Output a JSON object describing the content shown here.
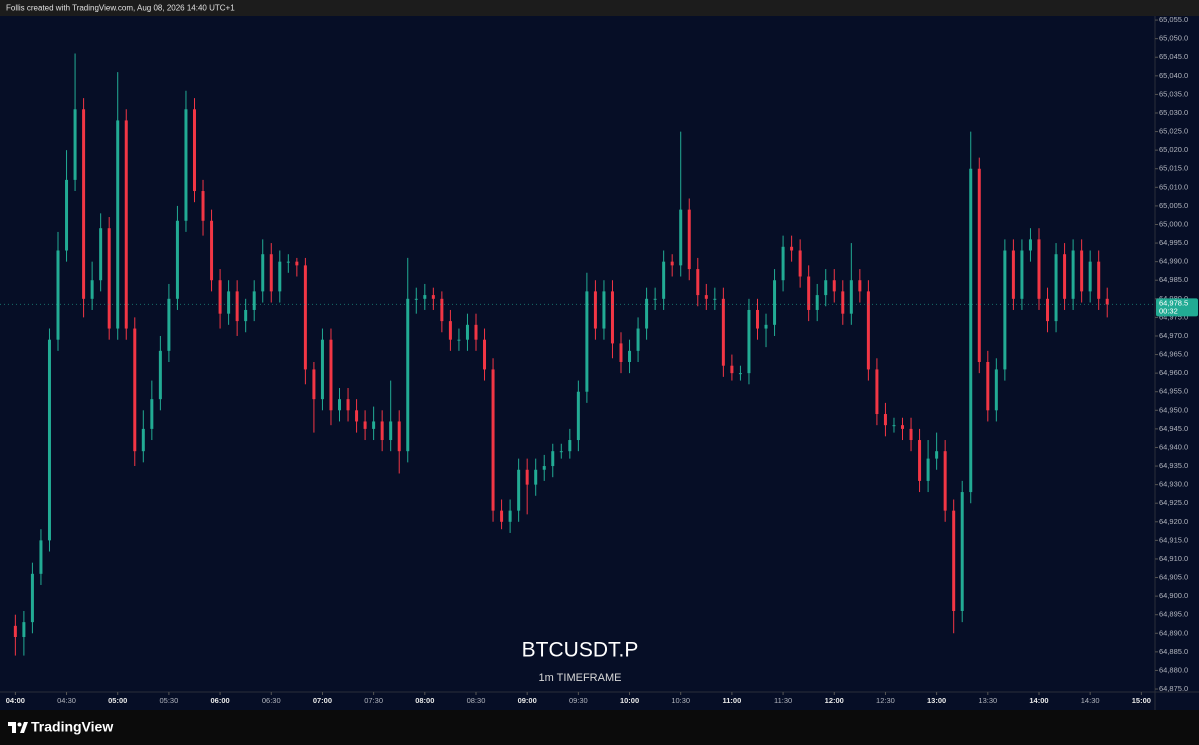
{
  "header": "Follis created with TradingView.com, Aug 08, 2026 14:40 UTC+1",
  "brand": "TradingView",
  "chart_data": {
    "type": "candlestick",
    "symbol": "BTCUSDT.P",
    "timeframe": "1m TIMEFRAME",
    "up_color": "#22ab94",
    "down_color": "#f23645",
    "background": "#060e26",
    "xlim": [
      "03:51",
      "15:08"
    ],
    "ylim": [
      64874.2,
      65056.1
    ],
    "xticks": [
      "04:00",
      "04:30",
      "05:00",
      "05:30",
      "06:00",
      "06:30",
      "07:00",
      "07:30",
      "08:00",
      "08:30",
      "09:00",
      "09:30",
      "10:00",
      "10:30",
      "11:00",
      "11:30",
      "12:00",
      "12:30",
      "13:00",
      "13:30",
      "14:00",
      "14:30",
      "15:00"
    ],
    "yticks": [
      {
        "value": 64875,
        "label": "64,875.0"
      },
      {
        "value": 64880,
        "label": "64,880.0"
      },
      {
        "value": 64885,
        "label": "64,885.0"
      },
      {
        "value": 64890,
        "label": "64,890.0"
      },
      {
        "value": 64895,
        "label": "64,895.0"
      },
      {
        "value": 64900,
        "label": "64,900.0"
      },
      {
        "value": 64905,
        "label": "64,905.0"
      },
      {
        "value": 64910,
        "label": "64,910.0"
      },
      {
        "value": 64915,
        "label": "64,915.0"
      },
      {
        "value": 64920,
        "label": "64,920.0"
      },
      {
        "value": 64925,
        "label": "64,925.0"
      },
      {
        "value": 64930,
        "label": "64,930.0"
      },
      {
        "value": 64935,
        "label": "64,935.0"
      },
      {
        "value": 64940,
        "label": "64,940.0"
      },
      {
        "value": 64945,
        "label": "64,945.0"
      },
      {
        "value": 64950,
        "label": "64,950.0"
      },
      {
        "value": 64955,
        "label": "64,955.0"
      },
      {
        "value": 64960,
        "label": "64,960.0"
      },
      {
        "value": 64965,
        "label": "64,965.0"
      },
      {
        "value": 64970,
        "label": "64,970.0"
      },
      {
        "value": 64975,
        "label": "64,975.0"
      },
      {
        "value": 64980,
        "label": "64,980.0"
      },
      {
        "value": 64985,
        "label": "64,985.0"
      },
      {
        "value": 64990,
        "label": "64,990.0"
      },
      {
        "value": 64995,
        "label": "64,995.0"
      },
      {
        "value": 65000,
        "label": "65,000.0"
      },
      {
        "value": 65005,
        "label": "65,005.0"
      },
      {
        "value": 65010,
        "label": "65,010.0"
      },
      {
        "value": 65015,
        "label": "65,015.0"
      },
      {
        "value": 65020,
        "label": "65,020.0"
      },
      {
        "value": 65025,
        "label": "65,025.0"
      },
      {
        "value": 65030,
        "label": "65,030.0"
      },
      {
        "value": 65035,
        "label": "65,035.0"
      },
      {
        "value": 65040,
        "label": "65,040.0"
      },
      {
        "value": 65045,
        "label": "65,045.0"
      },
      {
        "value": 65050,
        "label": "65,050.0"
      },
      {
        "value": 65055,
        "label": "65,055.0"
      }
    ],
    "last_price": {
      "value": 64978.5,
      "label": "64,978.5"
    },
    "countdown": "00:32",
    "x": [
      "04:00",
      "04:05",
      "04:10",
      "04:15",
      "04:20",
      "04:25",
      "04:30",
      "04:35",
      "04:40",
      "04:45",
      "04:50",
      "04:55",
      "05:00",
      "05:05",
      "05:10",
      "05:15",
      "05:20",
      "05:25",
      "05:30",
      "05:35",
      "05:40",
      "05:45",
      "05:50",
      "05:55",
      "06:00",
      "06:05",
      "06:10",
      "06:15",
      "06:20",
      "06:25",
      "06:30",
      "06:35",
      "06:40",
      "06:45",
      "06:50",
      "06:55",
      "07:00",
      "07:05",
      "07:10",
      "07:15",
      "07:20",
      "07:25",
      "07:30",
      "07:35",
      "07:40",
      "07:45",
      "07:50",
      "07:55",
      "08:00",
      "08:05",
      "08:10",
      "08:15",
      "08:20",
      "08:25",
      "08:30",
      "08:35",
      "08:40",
      "08:45",
      "08:50",
      "08:55",
      "09:00",
      "09:05",
      "09:10",
      "09:15",
      "09:20",
      "09:25",
      "09:30",
      "09:35",
      "09:40",
      "09:45",
      "09:50",
      "09:55",
      "10:00",
      "10:05",
      "10:10",
      "10:15",
      "10:20",
      "10:25",
      "10:30",
      "10:35",
      "10:40",
      "10:45",
      "10:50",
      "10:55",
      "11:00",
      "11:05",
      "11:10",
      "11:15",
      "11:20",
      "11:25",
      "11:30",
      "11:35",
      "11:40",
      "11:45",
      "11:50",
      "11:55",
      "12:00",
      "12:05",
      "12:10",
      "12:15",
      "12:20",
      "12:25",
      "12:30",
      "12:35",
      "12:40",
      "12:45",
      "12:50",
      "12:55",
      "13:00",
      "13:05",
      "13:10",
      "13:15",
      "13:20",
      "13:25",
      "13:30",
      "13:35",
      "13:40",
      "13:45",
      "13:50",
      "13:55",
      "14:00",
      "14:05",
      "14:10",
      "14:15",
      "14:20",
      "14:25",
      "14:30",
      "14:35",
      "14:40"
    ],
    "open": [
      64892,
      64889,
      64893,
      64906,
      64915,
      64969,
      64993,
      65012,
      65031,
      64980,
      64985,
      64999,
      64972,
      65028,
      64972,
      64939,
      64945,
      64953,
      64966,
      64980,
      65001,
      65031,
      65009,
      65001,
      64985,
      64976,
      64982,
      64974,
      64977,
      64982,
      64992,
      64982,
      64990,
      64990,
      64989,
      64961,
      64953,
      64969,
      64950,
      64953,
      64950,
      64947,
      64945,
      64947,
      64942,
      64947,
      64939,
      64980,
      64980,
      64981,
      64980,
      64974,
      64969,
      64969,
      64973,
      64969,
      64961,
      64923,
      64920,
      64923,
      64934,
      64930,
      64934,
      64935,
      64939,
      64939,
      64942,
      64955,
      64982,
      64972,
      64982,
      64968,
      64963,
      64966,
      64972,
      64980,
      64980,
      64990,
      64989,
      65004,
      64988,
      64981,
      64980,
      64980,
      64962,
      64960,
      64960,
      64977,
      64972,
      64973,
      64985,
      64994,
      64993,
      64986,
      64977,
      64981,
      64985,
      64982,
      64976,
      64985,
      64982,
      64961,
      64949,
      64946,
      64946,
      64945,
      64942,
      64931,
      64937,
      64939,
      64923,
      64896,
      64928,
      65015,
      64963,
      64950,
      64961,
      64993,
      64980,
      64993,
      64996,
      64980,
      64974,
      64992,
      64980,
      64993,
      64982,
      64990,
      64980
    ],
    "high": [
      64895,
      64896,
      64909,
      64918,
      64972,
      64998,
      65020,
      65046,
      65034,
      64990,
      65003,
      65002,
      65041,
      65031,
      64975,
      64950,
      64958,
      64970,
      64984,
      65005,
      65036,
      65034,
      65012,
      65004,
      64988,
      64985,
      64985,
      64980,
      64985,
      64996,
      64995,
      64993,
      64992,
      64991,
      64991,
      64963,
      64972,
      64972,
      64956,
      64956,
      64953,
      64950,
      64951,
      64950,
      64958,
      64950,
      64991,
      64983,
      64984,
      64983,
      64982,
      64977,
      64972,
      64976,
      64976,
      64972,
      64964,
      64926,
      64926,
      64937,
      64937,
      64937,
      64938,
      64941,
      64941,
      64945,
      64958,
      64987,
      64985,
      64985,
      64985,
      64971,
      64969,
      64975,
      64983,
      64983,
      64993,
      64992,
      65025,
      65007,
      64991,
      64984,
      64983,
      64983,
      64965,
      64962,
      64980,
      64980,
      64976,
      64988,
      64997,
      64997,
      64996,
      64989,
      64984,
      64988,
      64988,
      64985,
      64995,
      64988,
      64985,
      64964,
      64952,
      64948,
      64948,
      64948,
      64945,
      64942,
      64944,
      64942,
      64926,
      64931,
      65025,
      65018,
      64966,
      64964,
      64996,
      64996,
      64996,
      64999,
      64999,
      64983,
      64995,
      64995,
      64996,
      64996,
      64993,
      64993,
      64983
    ],
    "low": [
      64884,
      64884,
      64890,
      64903,
      64912,
      64966,
      64990,
      65009,
      64975,
      64977,
      64982,
      64969,
      64969,
      64969,
      64935,
      64936,
      64942,
      64950,
      64963,
      64977,
      64998,
      65006,
      64997,
      64982,
      64972,
      64973,
      64970,
      64971,
      64974,
      64979,
      64979,
      64979,
      64987,
      64986,
      64957,
      64944,
      64950,
      64946,
      64947,
      64947,
      64944,
      64942,
      64942,
      64939,
      64939,
      64933,
      64936,
      64976,
      64977,
      64977,
      64971,
      64966,
      64966,
      64966,
      64966,
      64958,
      64920,
      64918,
      64917,
      64920,
      64922,
      64927,
      64931,
      64932,
      64937,
      64937,
      64939,
      64952,
      64969,
      64969,
      64964,
      64960,
      64960,
      64963,
      64969,
      64977,
      64977,
      64986,
      64986,
      64985,
      64978,
      64977,
      64977,
      64959,
      64958,
      64958,
      64957,
      64969,
      64967,
      64970,
      64982,
      64990,
      64983,
      64974,
      64974,
      64978,
      64979,
      64973,
      64973,
      64979,
      64958,
      64946,
      64943,
      64944,
      64942,
      64939,
      64928,
      64928,
      64934,
      64920,
      64890,
      64893,
      64925,
      64960,
      64947,
      64947,
      64958,
      64977,
      64977,
      64990,
      64977,
      64971,
      64971,
      64977,
      64977,
      64979,
      64979,
      64977,
      64975
    ],
    "close": [
      64889,
      64893,
      64906,
      64915,
      64969,
      64993,
      65012,
      65031,
      64980,
      64985,
      64999,
      64972,
      65028,
      64972,
      64939,
      64945,
      64953,
      64966,
      64980,
      65001,
      65031,
      65009,
      65001,
      64985,
      64976,
      64982,
      64974,
      64977,
      64982,
      64992,
      64982,
      64990,
      64990,
      64989,
      64961,
      64953,
      64969,
      64950,
      64953,
      64950,
      64947,
      64945,
      64947,
      64942,
      64947,
      64939,
      64980,
      64980,
      64981,
      64980,
      64974,
      64969,
      64969,
      64973,
      64969,
      64961,
      64923,
      64920,
      64923,
      64934,
      64930,
      64934,
      64935,
      64939,
      64939,
      64942,
      64955,
      64982,
      64972,
      64982,
      64968,
      64963,
      64966,
      64972,
      64980,
      64980,
      64990,
      64989,
      65004,
      64988,
      64981,
      64980,
      64980,
      64962,
      64960,
      64960,
      64977,
      64972,
      64973,
      64985,
      64994,
      64993,
      64986,
      64977,
      64981,
      64985,
      64982,
      64976,
      64985,
      64982,
      64961,
      64949,
      64946,
      64946,
      64945,
      64942,
      64931,
      64937,
      64939,
      64923,
      64896,
      64928,
      65015,
      64963,
      64950,
      64961,
      64993,
      64980,
      64993,
      64996,
      64980,
      64974,
      64992,
      64980,
      64993,
      64982,
      64990,
      64980,
      64978.5
    ]
  }
}
